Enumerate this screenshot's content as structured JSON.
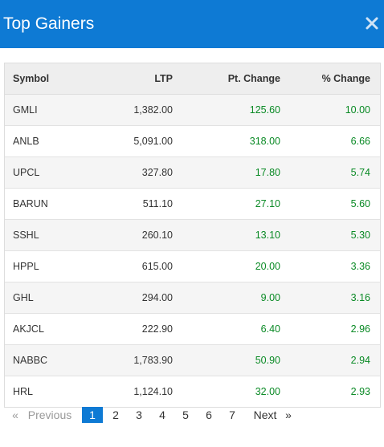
{
  "header": {
    "title": "Top Gainers",
    "close_icon": "close-icon"
  },
  "table": {
    "columns": [
      "Symbol",
      "LTP",
      "Pt. Change",
      "% Change"
    ],
    "rows": [
      {
        "symbol": "GMLI",
        "ltp": "1,382.00",
        "pt_change": "125.60",
        "pct_change": "10.00"
      },
      {
        "symbol": "ANLB",
        "ltp": "5,091.00",
        "pt_change": "318.00",
        "pct_change": "6.66"
      },
      {
        "symbol": "UPCL",
        "ltp": "327.80",
        "pt_change": "17.80",
        "pct_change": "5.74"
      },
      {
        "symbol": "BARUN",
        "ltp": "511.10",
        "pt_change": "27.10",
        "pct_change": "5.60"
      },
      {
        "symbol": "SSHL",
        "ltp": "260.10",
        "pt_change": "13.10",
        "pct_change": "5.30"
      },
      {
        "symbol": "HPPL",
        "ltp": "615.00",
        "pt_change": "20.00",
        "pct_change": "3.36"
      },
      {
        "symbol": "GHL",
        "ltp": "294.00",
        "pt_change": "9.00",
        "pct_change": "3.16"
      },
      {
        "symbol": "AKJCL",
        "ltp": "222.90",
        "pt_change": "6.40",
        "pct_change": "2.96"
      },
      {
        "symbol": "NABBC",
        "ltp": "1,783.90",
        "pt_change": "50.90",
        "pct_change": "2.94"
      },
      {
        "symbol": "HRL",
        "ltp": "1,124.10",
        "pt_change": "32.00",
        "pct_change": "2.93"
      }
    ]
  },
  "pagination": {
    "prev_arrow": "«",
    "prev_label": "Previous",
    "pages": [
      "1",
      "2",
      "3",
      "4",
      "5",
      "6",
      "7"
    ],
    "active_page": "1",
    "next_label": "Next",
    "next_arrow": "»"
  },
  "colors": {
    "header_bg": "#0e7ad4",
    "positive": "#0a8a25",
    "active_page": "#0e7ad4"
  }
}
